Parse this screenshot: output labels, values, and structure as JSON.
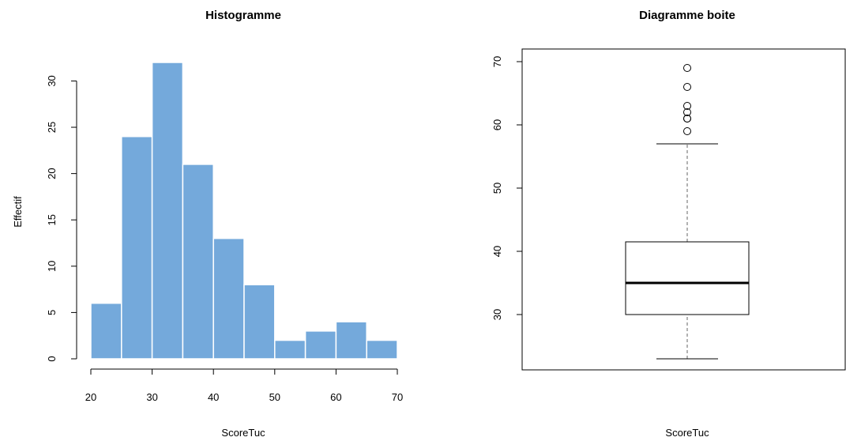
{
  "chart_data": [
    {
      "type": "bar",
      "title": "Histogramme",
      "xlabel": "ScoreTuc",
      "ylabel": "Effectif",
      "bin_edges": [
        20,
        25,
        30,
        35,
        40,
        45,
        50,
        55,
        60,
        65,
        70
      ],
      "values": [
        6,
        24,
        32,
        21,
        13,
        8,
        2,
        3,
        4,
        2
      ],
      "xlim": [
        20,
        70
      ],
      "ylim": [
        0,
        32
      ],
      "x_ticks": [
        "20",
        "30",
        "40",
        "50",
        "60",
        "70"
      ],
      "y_ticks": [
        "0",
        "5",
        "10",
        "15",
        "20",
        "25",
        "30"
      ],
      "bar_color": "#74a9db"
    },
    {
      "type": "boxplot",
      "title": "Diagramme boite",
      "xlabel": "ScoreTuc",
      "ylim": [
        23,
        70
      ],
      "y_ticks": [
        "30",
        "40",
        "50",
        "60",
        "70"
      ],
      "whisker_low": 23,
      "q1": 30,
      "median": 35,
      "q3": 41.5,
      "whisker_high": 57,
      "outliers": [
        59,
        61,
        61,
        62,
        63,
        66,
        69
      ]
    }
  ]
}
